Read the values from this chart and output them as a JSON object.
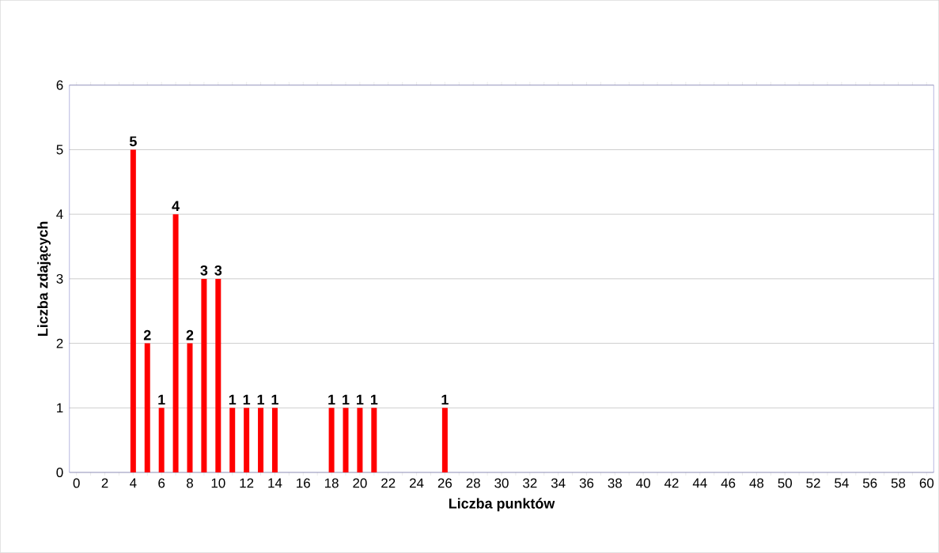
{
  "chart_data": {
    "type": "bar",
    "xlabel": "Liczba punktów",
    "ylabel": "Liczba zdających",
    "categories": [
      "0",
      null,
      "2",
      null,
      "4",
      null,
      "6",
      null,
      "8",
      null,
      "10",
      null,
      "12",
      null,
      "14",
      null,
      "16",
      null,
      "18",
      null,
      "20",
      null,
      "22",
      null,
      "24",
      null,
      "26",
      null,
      "28",
      null,
      "30",
      null,
      "32",
      null,
      "34",
      null,
      "36",
      null,
      "38",
      null,
      "40",
      null,
      "42",
      null,
      "44",
      null,
      "46",
      null,
      "48",
      null,
      "50",
      null,
      "52",
      null,
      "54",
      null,
      "56",
      null,
      "58",
      null,
      "60"
    ],
    "values": [
      null,
      null,
      null,
      null,
      5,
      2,
      1,
      4,
      2,
      3,
      3,
      1,
      1,
      1,
      1,
      null,
      null,
      null,
      1,
      1,
      1,
      1,
      null,
      null,
      null,
      null,
      1,
      null,
      null,
      null,
      null,
      null,
      null,
      null,
      null,
      null,
      null,
      null,
      null,
      null,
      null,
      null,
      null,
      null,
      null,
      null,
      null,
      null,
      null,
      null,
      null,
      null,
      null,
      null,
      null,
      null,
      null,
      null,
      null,
      null,
      null
    ],
    "color": "#ff0000",
    "ylim": [
      0,
      6
    ],
    "yticks": [
      0,
      1,
      2,
      3,
      4,
      5,
      6
    ],
    "grid": "y",
    "data_labels": true
  }
}
